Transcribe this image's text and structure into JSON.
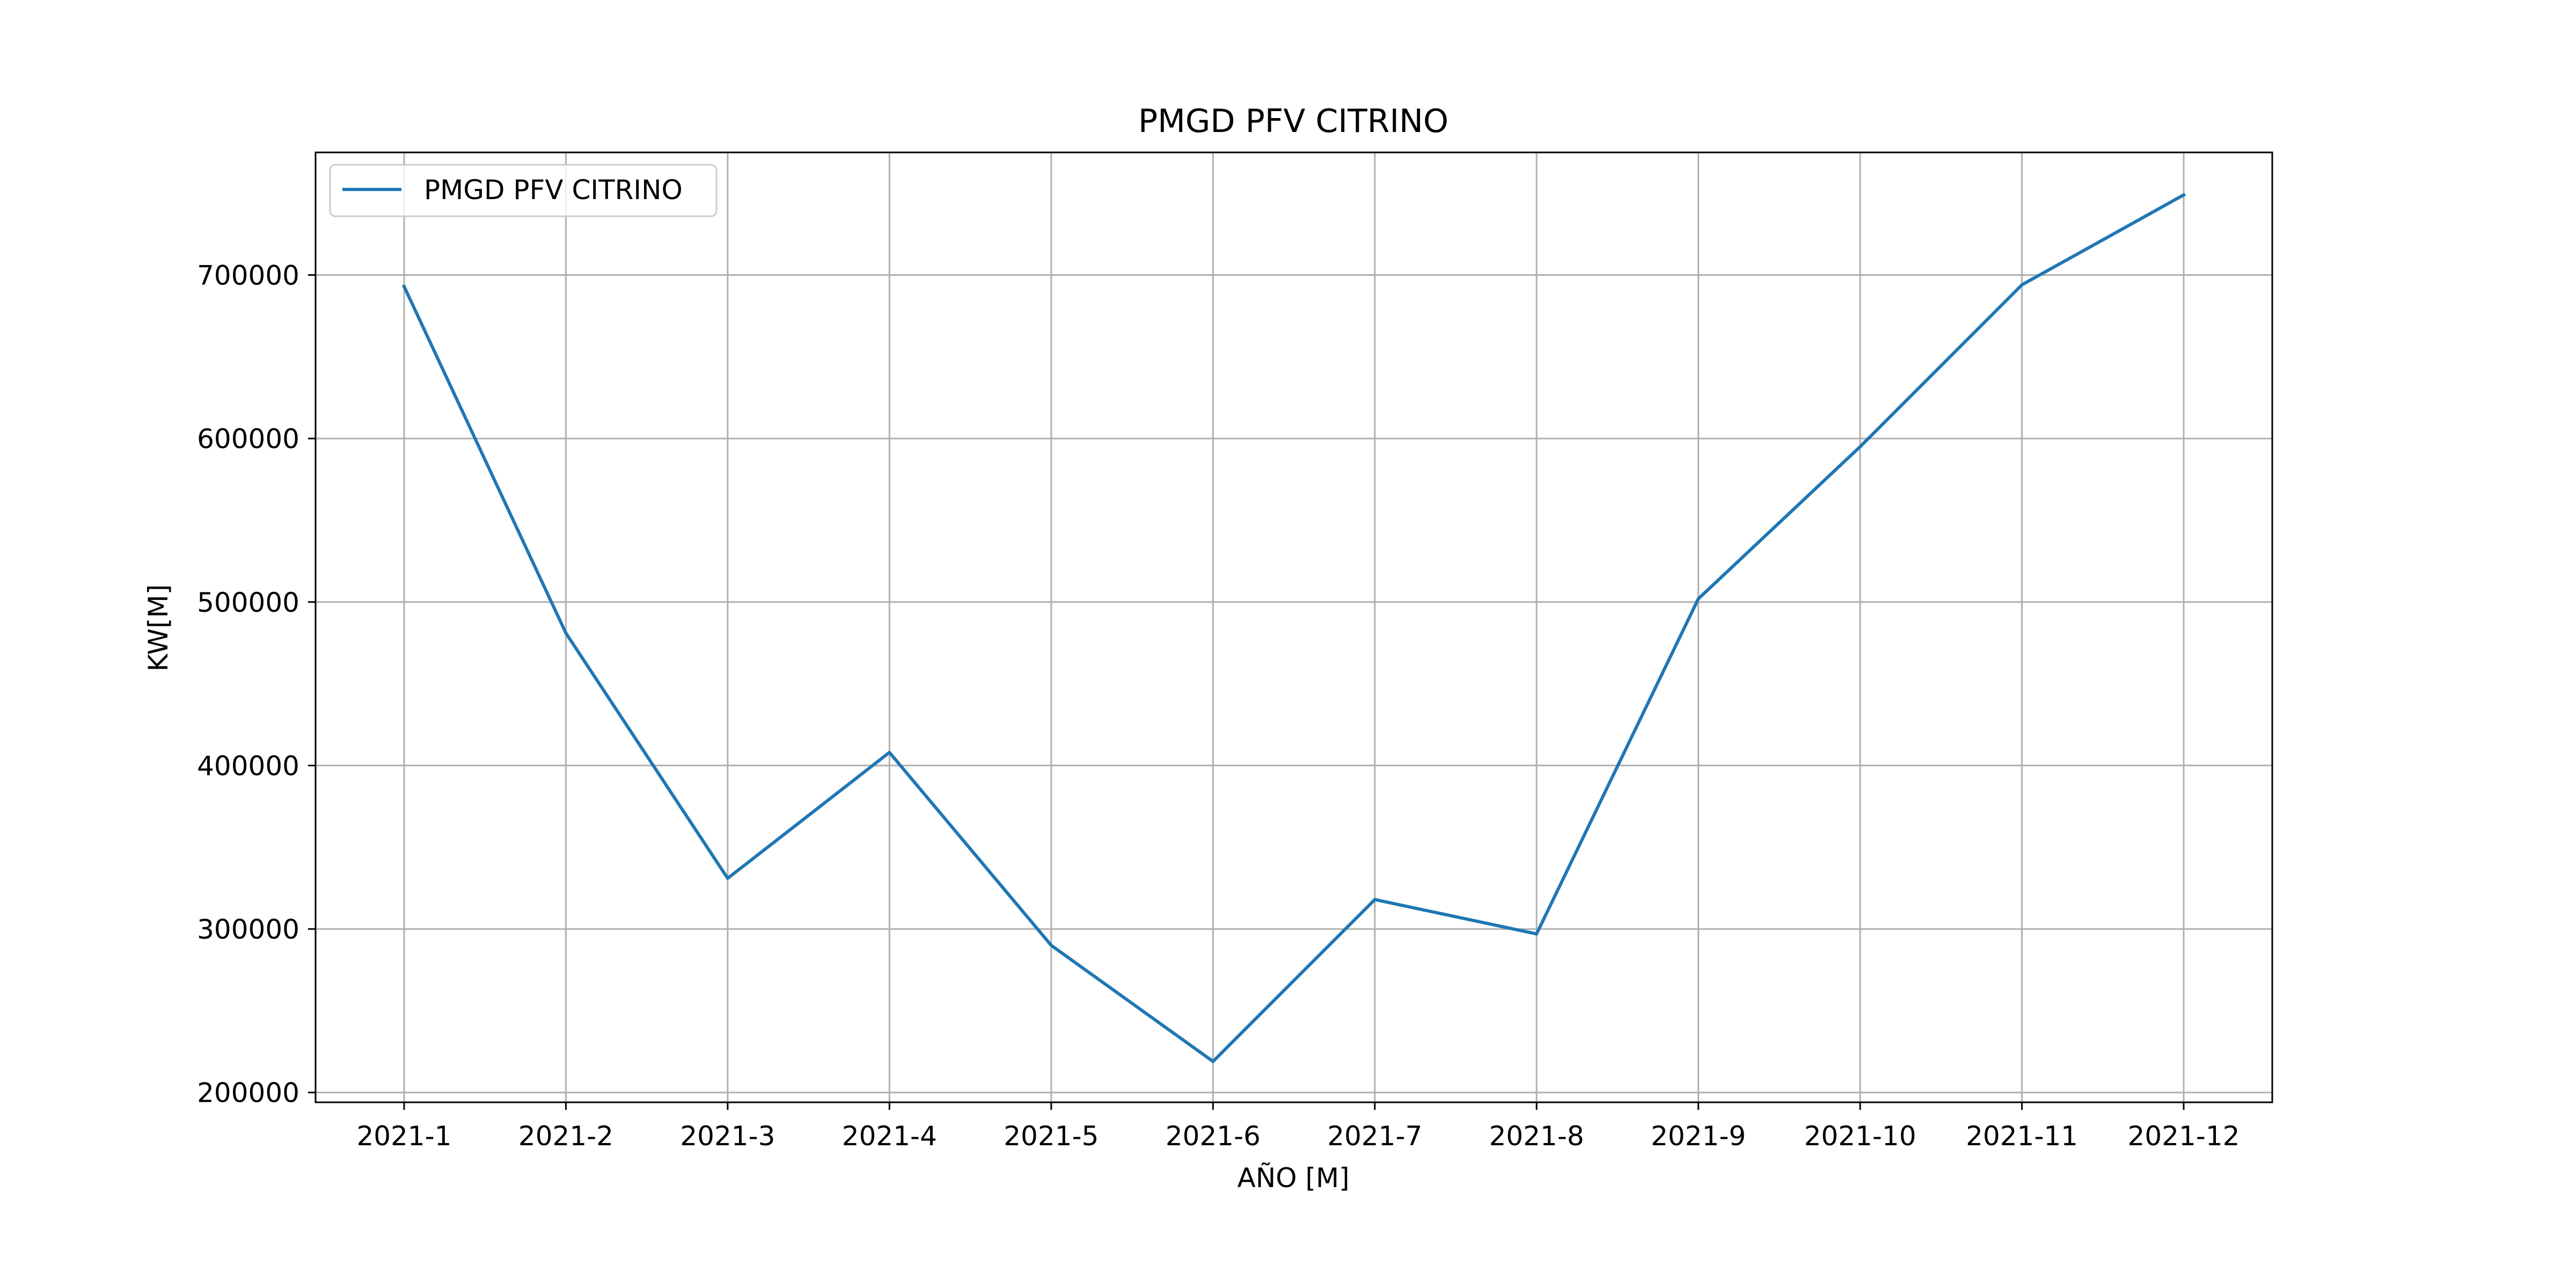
{
  "chart_data": {
    "type": "line",
    "title": "PMGD PFV CITRINO",
    "xlabel": "AÑO [M]",
    "ylabel": "KW[M]",
    "categories": [
      "2021-1",
      "2021-2",
      "2021-3",
      "2021-4",
      "2021-5",
      "2021-6",
      "2021-7",
      "2021-8",
      "2021-9",
      "2021-10",
      "2021-11",
      "2021-12"
    ],
    "series": [
      {
        "name": "PMGD PFV CITRINO",
        "color": "#1f77b4",
        "values": [
          693000,
          481000,
          331000,
          408000,
          290000,
          219000,
          318000,
          297000,
          502000,
          595000,
          694000,
          749000
        ]
      }
    ],
    "ylim": [
      194000,
      775000
    ],
    "yticks": [
      200000,
      300000,
      400000,
      500000,
      600000,
      700000
    ],
    "ytick_labels": [
      "200000",
      "300000",
      "400000",
      "500000",
      "600000",
      "700000"
    ],
    "grid": true,
    "legend_position": "top-left"
  }
}
